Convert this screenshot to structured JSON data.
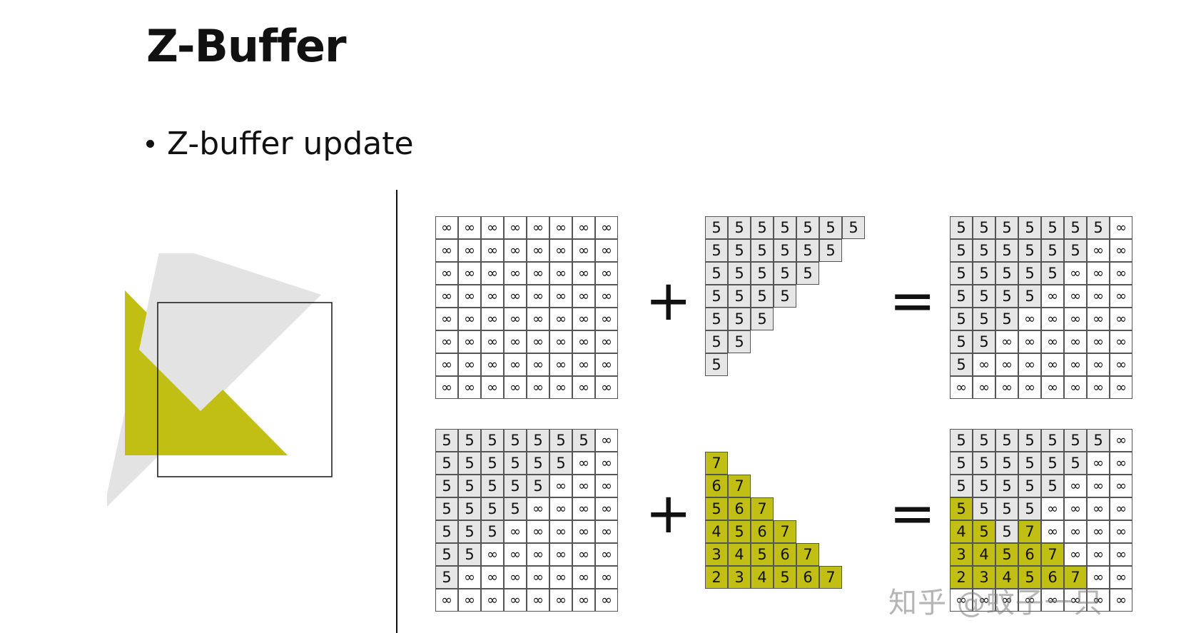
{
  "slide": {
    "title": "Z-Buffer",
    "bullet": "Z-buffer update"
  },
  "operators": {
    "plus": "+",
    "equals": "="
  },
  "colors": {
    "fill_gray": "#e6e6e6",
    "fill_yellow": "#c2bf14",
    "empty": "#ffffff",
    "gray_triangle": "#e3e3e3"
  },
  "grids": {
    "top_initial": [
      "∞∞∞∞∞∞∞∞",
      "∞∞∞∞∞∞∞∞",
      "∞∞∞∞∞∞∞∞",
      "∞∞∞∞∞∞∞∞",
      "∞∞∞∞∞∞∞∞",
      "∞∞∞∞∞∞∞∞",
      "∞∞∞∞∞∞∞∞",
      "∞∞∞∞∞∞∞∞"
    ],
    "top_added": [
      "5555555",
      "555555",
      "55555",
      "5555",
      "555",
      "55",
      "5"
    ],
    "top_result": [
      "5555555∞",
      "555555∞∞",
      "55555∞∞∞",
      "5555∞∞∞∞",
      "555∞∞∞∞∞",
      "55∞∞∞∞∞∞",
      "5∞∞∞∞∞∞∞",
      "∞∞∞∞∞∞∞∞"
    ],
    "bottom_initial": [
      "5555555∞",
      "555555∞∞",
      "55555∞∞∞",
      "5555∞∞∞∞",
      "555∞∞∞∞∞",
      "55∞∞∞∞∞∞",
      "5∞∞∞∞∞∞∞",
      "∞∞∞∞∞∞∞∞"
    ],
    "bottom_added": [
      "",
      "7",
      "67",
      "567",
      "4567",
      "34567",
      "234567"
    ],
    "bottom_result": [
      "5555555∞",
      "555555∞∞",
      "55555∞∞∞",
      "5555∞∞∞∞",
      "4557∞∞∞∞",
      "34567∞∞∞",
      "234567∞∞",
      "∞∞∞∞∞∞∞∞"
    ]
  },
  "bottom_result_yellow_cells": [
    [
      3,
      0
    ],
    [
      4,
      0
    ],
    [
      4,
      1
    ],
    [
      4,
      3
    ],
    [
      5,
      0
    ],
    [
      5,
      1
    ],
    [
      5,
      2
    ],
    [
      5,
      3
    ],
    [
      5,
      4
    ],
    [
      6,
      0
    ],
    [
      6,
      1
    ],
    [
      6,
      2
    ],
    [
      6,
      3
    ],
    [
      6,
      4
    ],
    [
      6,
      5
    ]
  ],
  "watermark": "知乎 @蚊子一只"
}
